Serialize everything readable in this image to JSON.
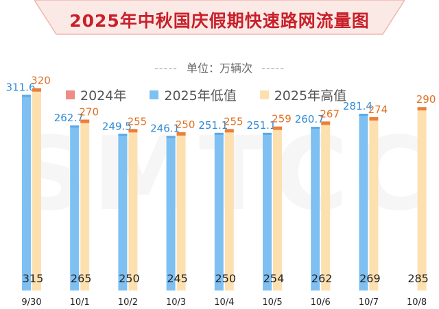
{
  "title": "2025年中秋国庆假期快速路网流量图",
  "unit": {
    "dash_left": "-----",
    "text": "单位：万辆次",
    "dash_right": "-----"
  },
  "watermark": "SMTCC",
  "legend": [
    {
      "label": "2024年",
      "color": "#f08a86"
    },
    {
      "label": "2025年低值",
      "color": "#7ec0f2"
    },
    {
      "label": "2025年高值",
      "color": "#fde0b0"
    }
  ],
  "colors": {
    "title": "#c8202a",
    "low_bar": "#7ec0f2",
    "low_bar_dark": "#5aa9e9",
    "high_bar": "#fde0b0",
    "marker": "#ea7f3a",
    "low_label": "#2f8ad8",
    "high_label": "#e07022",
    "value_2024": "#222222"
  },
  "chart_data": {
    "type": "bar",
    "categories": [
      "9/30",
      "10/1",
      "10/2",
      "10/3",
      "10/4",
      "10/5",
      "10/6",
      "10/7",
      "10/8"
    ],
    "series": [
      {
        "name": "2024年",
        "values": [
          315,
          265,
          250,
          245,
          250,
          254,
          262,
          269,
          285
        ]
      },
      {
        "name": "2025年低值",
        "values": [
          311.6,
          262.7,
          249.5,
          246.1,
          251.1,
          251.1,
          260.7,
          281.4,
          null
        ]
      },
      {
        "name": "2025年高值",
        "values": [
          320,
          270,
          255,
          250,
          255,
          259,
          267,
          274,
          290
        ]
      }
    ],
    "low_labels": [
      "311.6",
      "262.7",
      "249.5",
      "246.1",
      "251.1",
      "251.1",
      "260.7",
      "281.4",
      ""
    ],
    "high_labels": [
      "320",
      "270",
      "255",
      "250",
      "255",
      "259",
      "267",
      "274",
      "290"
    ],
    "value_2024_labels": [
      "315",
      "265",
      "250",
      "245",
      "250",
      "254",
      "262",
      "269",
      "285"
    ],
    "legend_position": "top"
  }
}
